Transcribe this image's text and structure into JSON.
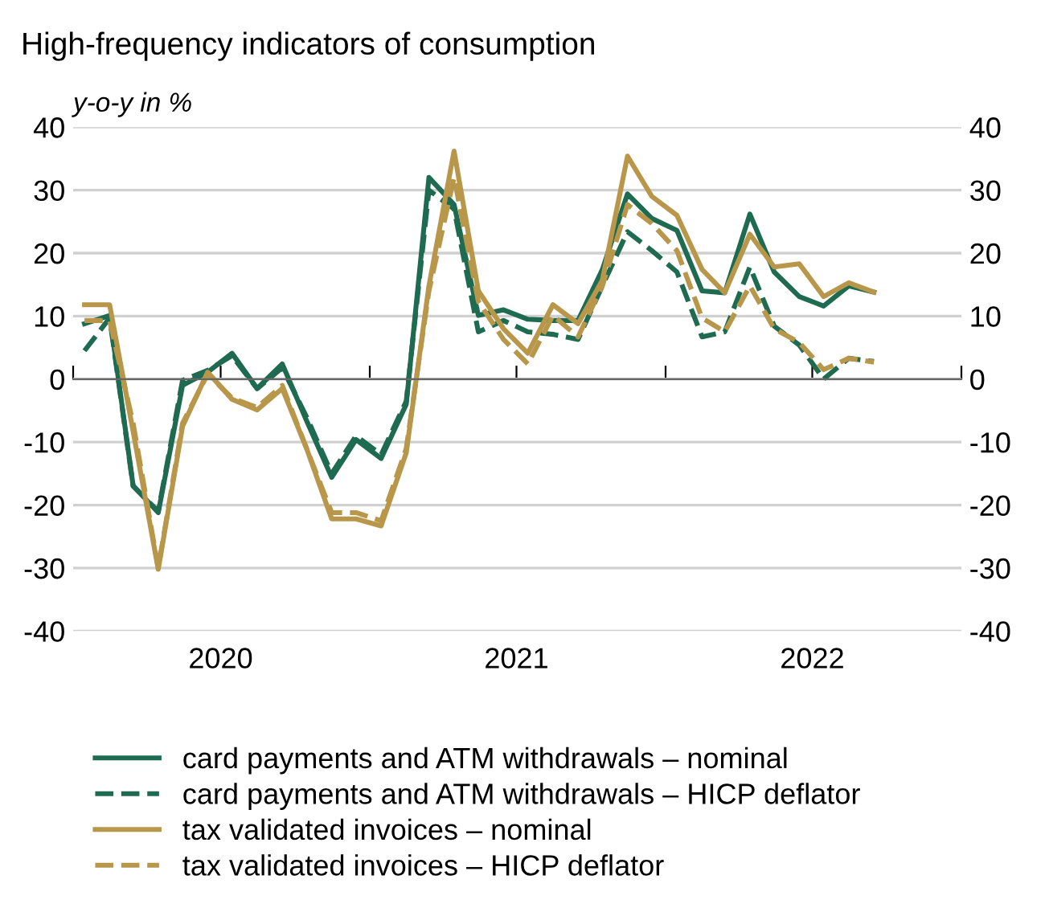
{
  "chart_data": {
    "type": "line",
    "title": "High-frequency indicators of consumption",
    "ylabel": "y-o-y in %",
    "x": [
      "2020-01-15",
      "2020-02-15",
      "2020-03-15",
      "2020-04-15",
      "2020-05-15",
      "2020-06-15",
      "2020-07-15",
      "2020-08-15",
      "2020-09-15",
      "2020-10-15",
      "2020-11-15",
      "2020-12-15",
      "2021-01-15",
      "2021-02-15",
      "2021-03-15",
      "2021-04-15",
      "2021-05-15",
      "2021-06-15",
      "2021-07-15",
      "2021-08-15",
      "2021-09-15",
      "2021-10-15",
      "2021-11-15",
      "2021-12-15",
      "2022-01-15",
      "2022-02-15",
      "2022-03-15",
      "2022-04-15",
      "2022-05-15",
      "2022-06-15",
      "2022-07-15",
      "2022-08-15",
      "2022-09-15"
    ],
    "series": [
      {
        "name": "card payments and ATM withdrawals – nominal",
        "color": "#1e6b52",
        "line_style": "solid",
        "values": [
          8.8,
          10.1,
          -16.9,
          -21.2,
          -1,
          1.1,
          4.1,
          -1.5,
          2.4,
          -6.6,
          -15.6,
          -9.6,
          -12.6,
          -4,
          32,
          27.7,
          10.1,
          11,
          9.5,
          9.3,
          9.3,
          17.4,
          29.4,
          25.5,
          23.6,
          14,
          13.7,
          26.2,
          17,
          13.1,
          11.6,
          14.8,
          13.8
        ]
      },
      {
        "name": "card payments and ATM withdrawals – HICP deflator",
        "color": "#1e6b52",
        "line_style": "dashed",
        "values": [
          4.5,
          9.7,
          -17,
          -21,
          -0.2,
          1.4,
          3.7,
          -1.5,
          1.8,
          -6,
          -15,
          -9,
          -12,
          -3.5,
          30,
          27,
          7.5,
          9.3,
          7.5,
          7.1,
          6.3,
          14.8,
          23.4,
          20.4,
          17,
          6.7,
          7.5,
          17.8,
          8.4,
          5.4,
          0,
          3.3,
          2.8
        ]
      },
      {
        "name": "tax validated invoices – nominal",
        "color": "#b8974a",
        "line_style": "solid",
        "values": [
          11.8,
          11.8,
          -8.3,
          -30.2,
          -7.5,
          1.1,
          -3.2,
          -4.9,
          -1.5,
          -11,
          -22.2,
          -22.2,
          -23.3,
          -11.7,
          14.8,
          36.2,
          14,
          8,
          4.1,
          11.8,
          8.8,
          15.7,
          35.4,
          29,
          26,
          17.4,
          13.7,
          23,
          17.8,
          18.3,
          13.1,
          15.3,
          13.8
        ]
      },
      {
        "name": "tax validated invoices – HICP deflator",
        "color": "#b8974a",
        "line_style": "dashed",
        "values": [
          9.3,
          9.3,
          -7,
          -30,
          -7,
          0.8,
          -3,
          -4.5,
          -1,
          -11,
          -21.2,
          -21.2,
          -22.5,
          -11,
          14,
          32,
          12.3,
          6.3,
          2.4,
          10.1,
          6.7,
          14.8,
          27.7,
          24.7,
          20.4,
          9.7,
          7.5,
          14.8,
          8,
          5.8,
          1.5,
          3.3,
          2.7
        ]
      }
    ],
    "xlim": [
      "2020-01-01",
      "2023-01-01"
    ],
    "xticks": [
      {
        "value": "2020-01-01",
        "label": null
      },
      {
        "value": "2020-07-01",
        "label": "2020"
      },
      {
        "value": "2021-01-01",
        "label": null
      },
      {
        "value": "2021-07-01",
        "label": "2021"
      },
      {
        "value": "2022-01-01",
        "label": null
      },
      {
        "value": "2022-07-01",
        "label": "2022"
      },
      {
        "value": "2023-01-01",
        "label": null
      }
    ],
    "ylim": [
      -40,
      40
    ],
    "yticks": [
      -40,
      -30,
      -20,
      -10,
      0,
      10,
      20,
      30,
      40
    ],
    "y2lim": [
      -40,
      40
    ],
    "y2ticks": [
      -40,
      -30,
      -20,
      -10,
      0,
      10,
      20,
      30,
      40
    ],
    "grid": "y",
    "legend": "bottom"
  }
}
